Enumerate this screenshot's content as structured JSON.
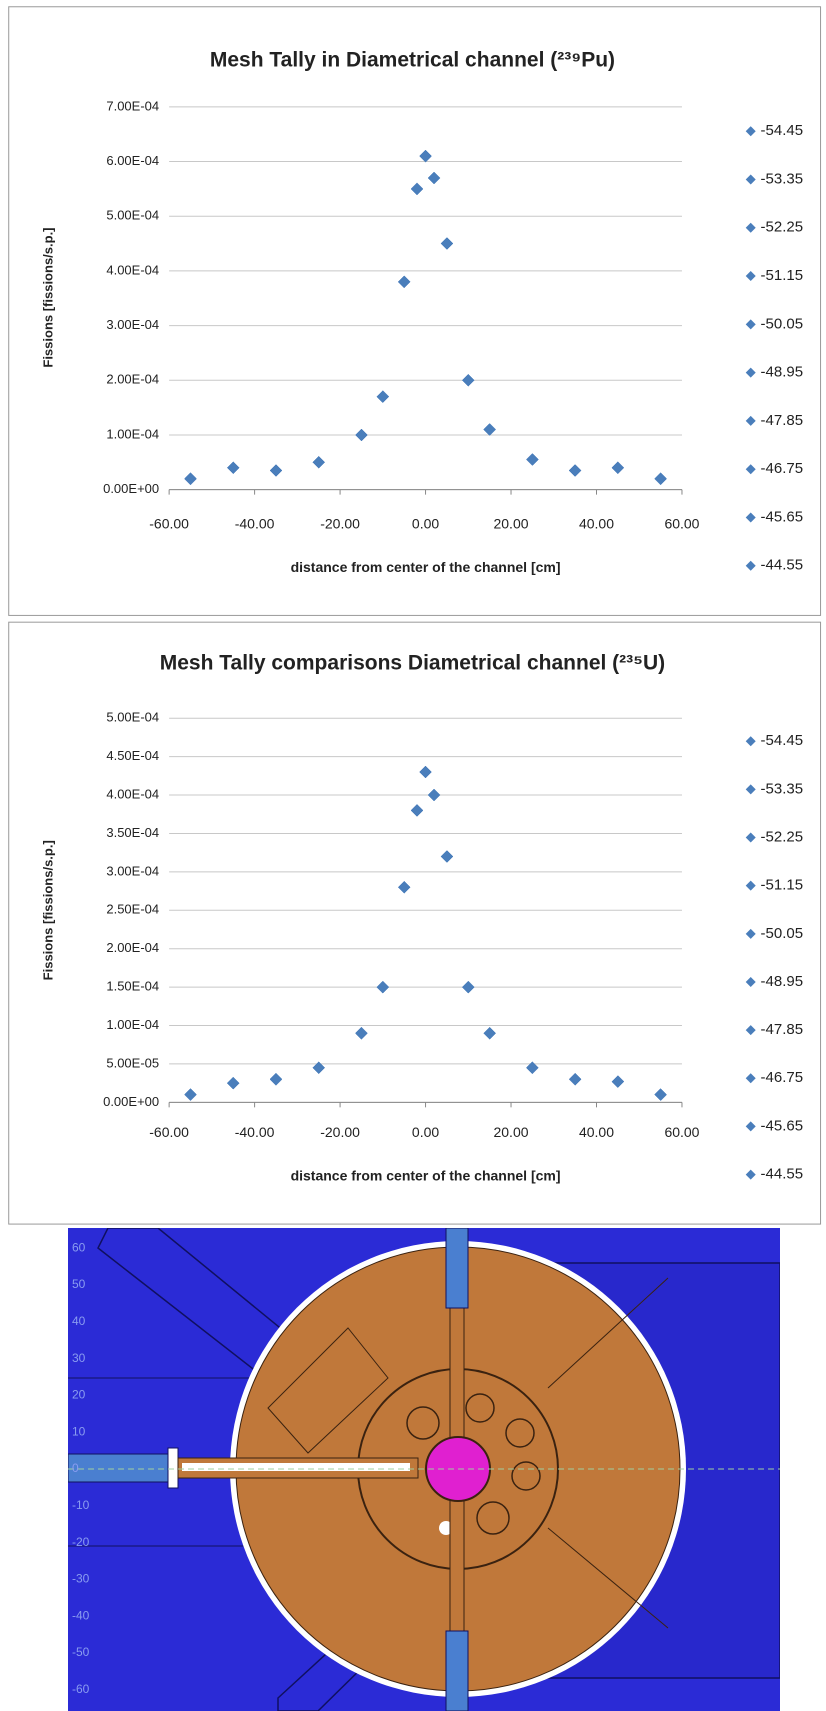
{
  "chart_data": [
    {
      "type": "scatter",
      "title": "Mesh Tally  in Diametrical channel (²³⁹Pu)",
      "x_label": "distance from center of the channel [cm]",
      "y_label": "Fissions [fissions/s.p.]",
      "x": [
        -55,
        -45,
        -35,
        -25,
        -15,
        -10,
        -5,
        -2,
        0,
        2,
        5,
        10,
        15,
        25,
        35,
        45,
        55
      ],
      "series": [
        {
          "name": "-54.45",
          "color": "#4a7ebb",
          "values": [
            2e-05,
            4e-05,
            3.5e-05,
            5e-05,
            0.0001,
            0.00017,
            0.00038,
            0.00055,
            0.00061,
            0.00057,
            0.00045,
            0.0002,
            0.00011,
            5.5e-05,
            3.5e-05,
            4e-05,
            2e-05
          ]
        },
        {
          "name": "-53.35",
          "color": "#4a7ebb",
          "values": [
            2e-05,
            4e-05,
            3.5e-05,
            5e-05,
            0.0001,
            0.00017,
            0.00038,
            0.00055,
            0.00061,
            0.00057,
            0.00045,
            0.0002,
            0.00011,
            5.5e-05,
            3.5e-05,
            4e-05,
            2e-05
          ]
        },
        {
          "name": "-52.25",
          "color": "#4a7ebb",
          "values": [
            2e-05,
            4e-05,
            3.5e-05,
            5e-05,
            0.0001,
            0.00017,
            0.00038,
            0.00055,
            0.00061,
            0.00057,
            0.00045,
            0.0002,
            0.00011,
            5.5e-05,
            3.5e-05,
            4e-05,
            2e-05
          ]
        },
        {
          "name": "-51.15",
          "color": "#4a7ebb",
          "values": [
            2e-05,
            4e-05,
            3.5e-05,
            5e-05,
            0.0001,
            0.00017,
            0.00038,
            0.00055,
            0.00061,
            0.00057,
            0.00045,
            0.0002,
            0.00011,
            5.5e-05,
            3.5e-05,
            4e-05,
            2e-05
          ]
        },
        {
          "name": "-50.05",
          "color": "#4a7ebb",
          "values": [
            2e-05,
            4e-05,
            3.5e-05,
            5e-05,
            0.0001,
            0.00017,
            0.00038,
            0.00055,
            0.00061,
            0.00057,
            0.00045,
            0.0002,
            0.00011,
            5.5e-05,
            3.5e-05,
            4e-05,
            2e-05
          ]
        },
        {
          "name": "-48.95",
          "color": "#4a7ebb",
          "values": [
            2e-05,
            4e-05,
            3.5e-05,
            5e-05,
            0.0001,
            0.00017,
            0.00038,
            0.00055,
            0.00061,
            0.00057,
            0.00045,
            0.0002,
            0.00011,
            5.5e-05,
            3.5e-05,
            4e-05,
            2e-05
          ]
        },
        {
          "name": "-47.85",
          "color": "#4a7ebb",
          "values": [
            2e-05,
            4e-05,
            3.5e-05,
            5e-05,
            0.0001,
            0.00017,
            0.00038,
            0.00055,
            0.00061,
            0.00057,
            0.00045,
            0.0002,
            0.00011,
            5.5e-05,
            3.5e-05,
            4e-05,
            2e-05
          ]
        },
        {
          "name": "-46.75",
          "color": "#4a7ebb",
          "values": [
            2e-05,
            4e-05,
            3.5e-05,
            5e-05,
            0.0001,
            0.00017,
            0.00038,
            0.00055,
            0.00061,
            0.00057,
            0.00045,
            0.0002,
            0.00011,
            5.5e-05,
            3.5e-05,
            4e-05,
            2e-05
          ]
        },
        {
          "name": "-45.65",
          "color": "#4a7ebb",
          "values": [
            2e-05,
            4e-05,
            3.5e-05,
            5e-05,
            0.0001,
            0.00017,
            0.00038,
            0.00055,
            0.00061,
            0.00057,
            0.00045,
            0.0002,
            0.00011,
            5.5e-05,
            3.5e-05,
            4e-05,
            2e-05
          ]
        },
        {
          "name": "-44.55",
          "color": "#4a7ebb",
          "values": [
            2e-05,
            4e-05,
            3.5e-05,
            5e-05,
            0.0001,
            0.00017,
            0.00038,
            0.00055,
            0.00061,
            0.00057,
            0.00045,
            0.0002,
            0.00011,
            5.5e-05,
            3.5e-05,
            4e-05,
            2e-05
          ]
        }
      ],
      "xlim": [
        -60,
        60
      ],
      "xticks": [
        {
          "value": -60,
          "label": "-60.00"
        },
        {
          "value": -40,
          "label": "-40.00"
        },
        {
          "value": -20,
          "label": "-20.00"
        },
        {
          "value": 0,
          "label": "0.00"
        },
        {
          "value": 20,
          "label": "20.00"
        },
        {
          "value": 40,
          "label": "40.00"
        },
        {
          "value": 60,
          "label": "60.00"
        }
      ],
      "ylim": [
        0,
        0.0007
      ],
      "yticks": [
        {
          "value": 0,
          "label": "0.00E+00"
        },
        {
          "value": 0.0001,
          "label": "1.00E-04"
        },
        {
          "value": 0.0002,
          "label": "2.00E-04"
        },
        {
          "value": 0.0003,
          "label": "3.00E-04"
        },
        {
          "value": 0.0004,
          "label": "4.00E-04"
        },
        {
          "value": 0.0005,
          "label": "5.00E-04"
        },
        {
          "value": 0.0006,
          "label": "6.00E-04"
        },
        {
          "value": 0.0007,
          "label": "7.00E-04"
        }
      ],
      "grid": true,
      "legend": "right"
    },
    {
      "type": "scatter",
      "title": "Mesh Tally comparisons  Diametrical channel (²³⁵U)",
      "x_label": "distance from center of the channel [cm]",
      "y_label": "Fissions [fissions/s.p.]",
      "x": [
        -55,
        -45,
        -35,
        -25,
        -15,
        -10,
        -5,
        -2,
        0,
        2,
        5,
        10,
        15,
        25,
        35,
        45,
        55
      ],
      "series": [
        {
          "name": "-54.45",
          "color": "#4a7ebb",
          "values": [
            1e-05,
            2.5e-05,
            3e-05,
            4.5e-05,
            9e-05,
            0.00015,
            0.00028,
            0.00038,
            0.00043,
            0.0004,
            0.00032,
            0.00015,
            9e-05,
            4.5e-05,
            3e-05,
            2.7e-05,
            1e-05
          ]
        },
        {
          "name": "-53.35",
          "color": "#4a7ebb",
          "values": [
            1e-05,
            2.5e-05,
            3e-05,
            4.5e-05,
            9e-05,
            0.00015,
            0.00028,
            0.00038,
            0.00043,
            0.0004,
            0.00032,
            0.00015,
            9e-05,
            4.5e-05,
            3e-05,
            2.7e-05,
            1e-05
          ]
        },
        {
          "name": "-52.25",
          "color": "#4a7ebb",
          "values": [
            1e-05,
            2.5e-05,
            3e-05,
            4.5e-05,
            9e-05,
            0.00015,
            0.00028,
            0.00038,
            0.00043,
            0.0004,
            0.00032,
            0.00015,
            9e-05,
            4.5e-05,
            3e-05,
            2.7e-05,
            1e-05
          ]
        },
        {
          "name": "-51.15",
          "color": "#4a7ebb",
          "values": [
            1e-05,
            2.5e-05,
            3e-05,
            4.5e-05,
            9e-05,
            0.00015,
            0.00028,
            0.00038,
            0.00043,
            0.0004,
            0.00032,
            0.00015,
            9e-05,
            4.5e-05,
            3e-05,
            2.7e-05,
            1e-05
          ]
        },
        {
          "name": "-50.05",
          "color": "#4a7ebb",
          "values": [
            1e-05,
            2.5e-05,
            3e-05,
            4.5e-05,
            9e-05,
            0.00015,
            0.00028,
            0.00038,
            0.00043,
            0.0004,
            0.00032,
            0.00015,
            9e-05,
            4.5e-05,
            3e-05,
            2.7e-05,
            1e-05
          ]
        },
        {
          "name": "-48.95",
          "color": "#4a7ebb",
          "values": [
            1e-05,
            2.5e-05,
            3e-05,
            4.5e-05,
            9e-05,
            0.00015,
            0.00028,
            0.00038,
            0.00043,
            0.0004,
            0.00032,
            0.00015,
            9e-05,
            4.5e-05,
            3e-05,
            2.7e-05,
            1e-05
          ]
        },
        {
          "name": "-47.85",
          "color": "#4a7ebb",
          "values": [
            1e-05,
            2.5e-05,
            3e-05,
            4.5e-05,
            9e-05,
            0.00015,
            0.00028,
            0.00038,
            0.00043,
            0.0004,
            0.00032,
            0.00015,
            9e-05,
            4.5e-05,
            3e-05,
            2.7e-05,
            1e-05
          ]
        },
        {
          "name": "-46.75",
          "color": "#4a7ebb",
          "values": [
            1e-05,
            2.5e-05,
            3e-05,
            4.5e-05,
            9e-05,
            0.00015,
            0.00028,
            0.00038,
            0.00043,
            0.0004,
            0.00032,
            0.00015,
            9e-05,
            4.5e-05,
            3e-05,
            2.7e-05,
            1e-05
          ]
        },
        {
          "name": "-45.65",
          "color": "#4a7ebb",
          "values": [
            1e-05,
            2.5e-05,
            3e-05,
            4.5e-05,
            9e-05,
            0.00015,
            0.00028,
            0.00038,
            0.00043,
            0.0004,
            0.00032,
            0.00015,
            9e-05,
            4.5e-05,
            3e-05,
            2.7e-05,
            1e-05
          ]
        },
        {
          "name": "-44.55",
          "color": "#4a7ebb",
          "values": [
            1e-05,
            2.5e-05,
            3e-05,
            4.5e-05,
            9e-05,
            0.00015,
            0.00028,
            0.00038,
            0.00043,
            0.0004,
            0.00032,
            0.00015,
            9e-05,
            4.5e-05,
            3e-05,
            2.7e-05,
            1e-05
          ]
        }
      ],
      "xlim": [
        -60,
        60
      ],
      "xticks": [
        {
          "value": -60,
          "label": "-60.00"
        },
        {
          "value": -40,
          "label": "-40.00"
        },
        {
          "value": -20,
          "label": "-20.00"
        },
        {
          "value": 0,
          "label": "0.00"
        },
        {
          "value": 20,
          "label": "20.00"
        },
        {
          "value": 40,
          "label": "40.00"
        },
        {
          "value": 60,
          "label": "60.00"
        }
      ],
      "ylim": [
        0,
        0.0005
      ],
      "yticks": [
        {
          "value": 0,
          "label": "0.00E+00"
        },
        {
          "value": 5e-05,
          "label": "5.00E-05"
        },
        {
          "value": 0.0001,
          "label": "1.00E-04"
        },
        {
          "value": 0.00015,
          "label": "1.50E-04"
        },
        {
          "value": 0.0002,
          "label": "2.00E-04"
        },
        {
          "value": 0.00025,
          "label": "2.50E-04"
        },
        {
          "value": 0.0003,
          "label": "3.00E-04"
        },
        {
          "value": 0.00035,
          "label": "3.50E-04"
        },
        {
          "value": 0.0004,
          "label": "4.00E-04"
        },
        {
          "value": 0.00045,
          "label": "4.50E-04"
        },
        {
          "value": 0.0005,
          "label": "5.00E-04"
        }
      ],
      "grid": true,
      "legend": "right"
    }
  ],
  "diagram": {
    "yticks": [
      60,
      50,
      40,
      30,
      20,
      10,
      0,
      -10,
      -20,
      -30,
      -40,
      -50,
      -60
    ]
  }
}
